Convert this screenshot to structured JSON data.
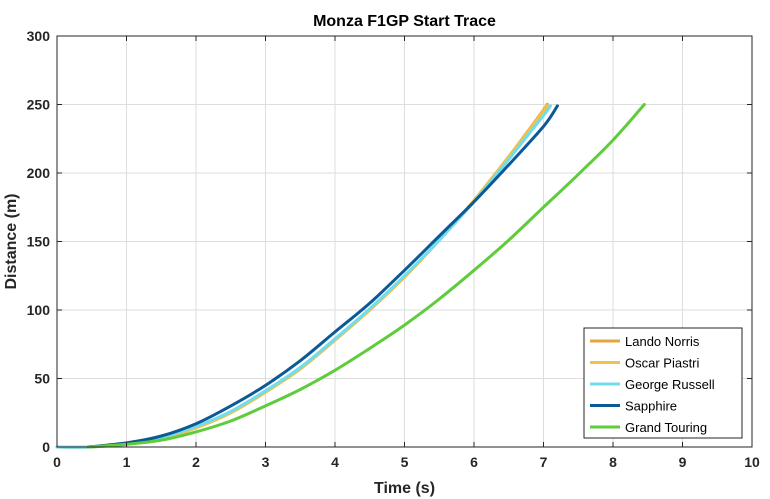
{
  "chart_data": {
    "type": "line",
    "title": "Monza F1GP Start Trace",
    "xlabel": "Time (s)",
    "ylabel": "Distance (m)",
    "xlim": [
      0,
      10
    ],
    "ylim": [
      0,
      300
    ],
    "xticks": [
      0,
      1,
      2,
      3,
      4,
      5,
      6,
      7,
      8,
      9,
      10
    ],
    "yticks": [
      0,
      50,
      100,
      150,
      200,
      250,
      300
    ],
    "grid": true,
    "legend_position": "bottom-right",
    "series": [
      {
        "name": "Lando Norris",
        "color": "#e8a33c",
        "x": [
          0,
          0.45,
          1,
          1.5,
          2,
          2.5,
          3,
          3.5,
          4,
          4.5,
          5,
          5.5,
          6,
          6.5,
          7,
          7.05
        ],
        "y": [
          0,
          0,
          2,
          6,
          14,
          25,
          40,
          57,
          78,
          100,
          124,
          151,
          180,
          212,
          246,
          250
        ]
      },
      {
        "name": "Oscar Piastri",
        "color": "#f0c24a",
        "x": [
          0,
          0.45,
          1,
          1.5,
          2,
          2.5,
          3,
          3.5,
          4,
          4.5,
          5,
          5.5,
          6,
          6.5,
          7,
          7.05
        ],
        "y": [
          0,
          0,
          2,
          6,
          14,
          25,
          40,
          57,
          78,
          100,
          124,
          151,
          180,
          212,
          245,
          249
        ]
      },
      {
        "name": "George Russell",
        "color": "#6fdcef",
        "x": [
          0,
          0.45,
          1,
          1.5,
          2,
          2.5,
          3,
          3.5,
          4,
          4.5,
          5,
          5.5,
          6,
          6.5,
          7,
          7.1
        ],
        "y": [
          0,
          0,
          2,
          7,
          15,
          26,
          41,
          58,
          79,
          101,
          125,
          151,
          179,
          210,
          242,
          249
        ]
      },
      {
        "name": "Sapphire",
        "color": "#0b5a96",
        "x": [
          0.45,
          1,
          1.5,
          2,
          2.5,
          3,
          3.5,
          4,
          4.5,
          5,
          5.5,
          6,
          6.5,
          7,
          7.2
        ],
        "y": [
          0,
          3,
          8,
          17,
          30,
          45,
          63,
          84,
          105,
          129,
          154,
          179,
          206,
          234,
          249
        ]
      },
      {
        "name": "Grand Touring",
        "color": "#5fcc3c",
        "x": [
          0.45,
          1,
          1.5,
          2,
          2.5,
          3,
          3.5,
          4,
          4.5,
          5,
          5.5,
          6,
          6.5,
          7,
          7.5,
          8,
          8.45
        ],
        "y": [
          0,
          2,
          5,
          11,
          19,
          30,
          42,
          56,
          72,
          89,
          108,
          129,
          151,
          175,
          199,
          224,
          250
        ]
      }
    ]
  }
}
